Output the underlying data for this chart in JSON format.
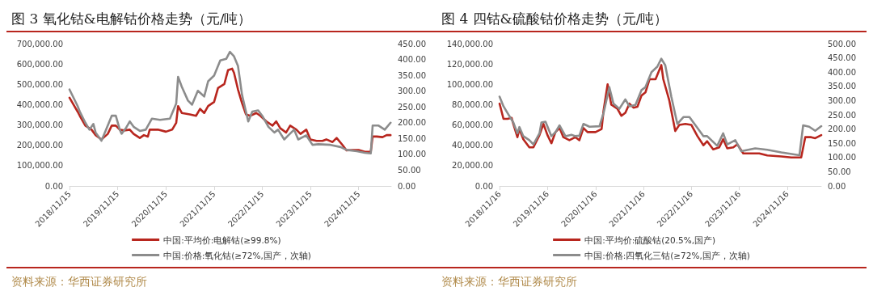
{
  "chart_data": [
    {
      "type": "line",
      "title": "图 3 氧化钴&电解钴价格走势（元/吨）",
      "annotations": [
        "资料来源：华西证券研究所"
      ],
      "legend": "bottom",
      "grid": false,
      "line_style": "solid",
      "marker": "none",
      "xlim": [
        "2018-11-15",
        "2025-07-20"
      ],
      "xticks": [
        {
          "value": "2018-11-15",
          "label": "2018/11/15"
        },
        {
          "value": "2019-11-15",
          "label": "2019/11/15"
        },
        {
          "value": "2020-11-15",
          "label": "2020/11/15"
        },
        {
          "value": "2021-11-15",
          "label": "2021/11/15"
        },
        {
          "value": "2022-11-15",
          "label": "2022/11/15"
        },
        {
          "value": "2023-11-15",
          "label": "2023/11/15"
        },
        {
          "value": "2024-11-15",
          "label": "2024/11/15"
        }
      ],
      "ylim": [
        0,
        700000
      ],
      "yticks": [
        {
          "value": 0,
          "label": "0.00"
        },
        {
          "value": 100000,
          "label": "100,000.00"
        },
        {
          "value": 200000,
          "label": "200,000.00"
        },
        {
          "value": 300000,
          "label": "300,000.00"
        },
        {
          "value": 400000,
          "label": "400,000.00"
        },
        {
          "value": 500000,
          "label": "500,000.00"
        },
        {
          "value": 600000,
          "label": "600,000.00"
        },
        {
          "value": 700000,
          "label": "700,000.00"
        }
      ],
      "y2lim": [
        0,
        450
      ],
      "y2ticks": [
        {
          "value": 0,
          "label": "0.00"
        },
        {
          "value": 50,
          "label": "50.00"
        },
        {
          "value": 100,
          "label": "100.00"
        },
        {
          "value": 150,
          "label": "150.00"
        },
        {
          "value": 200,
          "label": "200.00"
        },
        {
          "value": 250,
          "label": "250.00"
        },
        {
          "value": 300,
          "label": "300.00"
        },
        {
          "value": 350,
          "label": "350.00"
        },
        {
          "value": 400,
          "label": "400.00"
        },
        {
          "value": 450,
          "label": "450.00"
        }
      ],
      "series": [
        {
          "name": "中国:平均价:电解钴(≥99.8%)",
          "color": "#b8261e",
          "x": [
            "2018-11-15",
            "2019-01-15",
            "2019-02-01",
            "2019-03-15",
            "2019-05-01",
            "2019-06-01",
            "2019-07-15",
            "2019-09-01",
            "2019-10-01",
            "2019-11-01",
            "2019-12-01",
            "2020-01-01",
            "2020-02-15",
            "2020-03-15",
            "2020-05-01",
            "2020-06-01",
            "2020-07-01",
            "2020-07-15",
            "2020-09-15",
            "2020-11-15",
            "2021-01-01",
            "2021-02-01",
            "2021-02-15",
            "2021-03-15",
            "2021-05-15",
            "2021-07-01",
            "2021-08-01",
            "2021-09-01",
            "2021-10-01",
            "2021-11-15",
            "2021-12-15",
            "2022-02-01",
            "2022-03-01",
            "2022-04-01",
            "2022-04-15",
            "2022-05-15",
            "2022-06-15",
            "2022-07-15",
            "2022-08-15",
            "2022-10-01",
            "2022-11-01",
            "2022-12-15",
            "2023-02-01",
            "2023-03-01",
            "2023-04-01",
            "2023-05-15",
            "2023-06-15",
            "2023-08-01",
            "2023-09-01",
            "2023-10-15",
            "2023-11-15",
            "2024-01-01",
            "2024-02-15",
            "2024-03-15",
            "2024-05-01",
            "2024-06-01",
            "2024-07-15",
            "2024-08-15",
            "2024-10-01",
            "2024-11-15",
            "2025-01-01",
            "2025-02-15",
            "2025-03-01",
            "2025-04-01",
            "2025-05-15",
            "2025-06-15",
            "2025-07-15"
          ],
          "values": [
            434000,
            366000,
            345000,
            297000,
            277000,
            250000,
            229000,
            256000,
            297000,
            297000,
            277000,
            273000,
            277000,
            256000,
            236000,
            250000,
            243000,
            277000,
            277000,
            267000,
            277000,
            311000,
            393000,
            359000,
            352000,
            345000,
            379000,
            359000,
            393000,
            413000,
            482000,
            502000,
            570000,
            577000,
            557000,
            475000,
            407000,
            352000,
            345000,
            359000,
            345000,
            318000,
            297000,
            318000,
            284000,
            263000,
            297000,
            277000,
            256000,
            277000,
            229000,
            222000,
            222000,
            229000,
            216000,
            236000,
            202000,
            175000,
            177000,
            177000,
            168000,
            168000,
            243000,
            243000,
            240000,
            250000,
            250000
          ]
        },
        {
          "name": "中国:价格:氧化钴(≥72%,国产，次轴)",
          "color": "#8c8c8c",
          "axis": "y2",
          "x": [
            "2018-11-15",
            "2019-01-15",
            "2019-02-01",
            "2019-03-15",
            "2019-04-15",
            "2019-05-15",
            "2019-06-01",
            "2019-07-15",
            "2019-08-15",
            "2019-10-01",
            "2019-11-01",
            "2019-12-01",
            "2019-12-15",
            "2020-01-15",
            "2020-02-15",
            "2020-03-15",
            "2020-05-01",
            "2020-06-15",
            "2020-08-01",
            "2020-10-01",
            "2020-12-15",
            "2021-02-01",
            "2021-02-15",
            "2021-03-15",
            "2021-05-01",
            "2021-06-01",
            "2021-07-15",
            "2021-09-01",
            "2021-10-01",
            "2021-11-15",
            "2022-01-01",
            "2022-02-15",
            "2022-03-15",
            "2022-04-15",
            "2022-05-15",
            "2022-06-15",
            "2022-08-01",
            "2022-09-01",
            "2022-10-15",
            "2022-11-15",
            "2023-01-01",
            "2023-02-15",
            "2023-03-15",
            "2023-05-01",
            "2023-06-01",
            "2023-07-15",
            "2023-08-15",
            "2023-10-15",
            "2023-12-01",
            "2024-01-15",
            "2024-04-15",
            "2024-07-01",
            "2024-08-15",
            "2024-11-01",
            "2025-01-01",
            "2025-02-15",
            "2025-03-01",
            "2025-04-15",
            "2025-06-01",
            "2025-07-15"
          ],
          "values": [
            305,
            253,
            235,
            200,
            178,
            196,
            169,
            143,
            174,
            222,
            222,
            178,
            165,
            182,
            204,
            187,
            174,
            178,
            213,
            209,
            213,
            261,
            345,
            314,
            270,
            257,
            301,
            283,
            331,
            349,
            397,
            402,
            424,
            410,
            380,
            288,
            204,
            235,
            239,
            222,
            187,
            169,
            178,
            147,
            160,
            178,
            147,
            160,
            130,
            132,
            130,
            123,
            114,
            110,
            105,
            103,
            191,
            191,
            178,
            200
          ]
        }
      ]
    },
    {
      "type": "line",
      "title": "图 4 四钴&硫酸钴价格走势（元/吨）",
      "annotations": [
        "资料来源：华西证券研究所"
      ],
      "legend": "bottom",
      "grid": false,
      "line_style": "solid",
      "marker": "none",
      "xlim": [
        "2018-11-16",
        "2025-08-01"
      ],
      "xticks": [
        {
          "value": "2018-11-16",
          "label": "2018/11/16"
        },
        {
          "value": "2019-11-16",
          "label": "2019/11/16"
        },
        {
          "value": "2020-11-16",
          "label": "2020/11/16"
        },
        {
          "value": "2021-11-16",
          "label": "2021/11/16"
        },
        {
          "value": "2022-11-16",
          "label": "2022/11/16"
        },
        {
          "value": "2023-11-16",
          "label": "2023/11/16"
        },
        {
          "value": "2024-11-16",
          "label": "2024/11/16"
        }
      ],
      "ylim": [
        0,
        140000
      ],
      "yticks": [
        {
          "value": 0,
          "label": "0.00"
        },
        {
          "value": 20000,
          "label": "20,000.00"
        },
        {
          "value": 40000,
          "label": "40,000.00"
        },
        {
          "value": 60000,
          "label": "60,000.00"
        },
        {
          "value": 80000,
          "label": "80,000.00"
        },
        {
          "value": 100000,
          "label": "100,000.00"
        },
        {
          "value": 120000,
          "label": "120,000.00"
        },
        {
          "value": 140000,
          "label": "140,000.00"
        }
      ],
      "y2lim": [
        0,
        500
      ],
      "y2ticks": [
        {
          "value": 0,
          "label": "0.00"
        },
        {
          "value": 50,
          "label": "50.00"
        },
        {
          "value": 100,
          "label": "100.00"
        },
        {
          "value": 150,
          "label": "150.00"
        },
        {
          "value": 200,
          "label": "200.00"
        },
        {
          "value": 250,
          "label": "250.00"
        },
        {
          "value": 300,
          "label": "300.00"
        },
        {
          "value": 350,
          "label": "350.00"
        },
        {
          "value": 400,
          "label": "400.00"
        },
        {
          "value": 450,
          "label": "450.00"
        },
        {
          "value": 500,
          "label": "500.00"
        }
      ],
      "series": [
        {
          "name": "中国:平均价:硫酸钴(20.5%,国产)",
          "color": "#b8261e",
          "x": [
            "2018-11-16",
            "2018-12-16",
            "2019-01-16",
            "2019-02-16",
            "2019-03-01",
            "2019-04-01",
            "2019-04-16",
            "2019-05-16",
            "2019-07-01",
            "2019-08-01",
            "2019-09-16",
            "2019-10-16",
            "2019-11-16",
            "2019-12-16",
            "2020-01-16",
            "2020-02-16",
            "2020-03-16",
            "2020-05-01",
            "2020-06-16",
            "2020-07-16",
            "2020-08-16",
            "2020-09-16",
            "2020-11-16",
            "2021-01-01",
            "2021-01-16",
            "2021-02-16",
            "2021-03-16",
            "2021-05-01",
            "2021-06-01",
            "2021-07-01",
            "2021-08-01",
            "2021-09-01",
            "2021-10-01",
            "2021-11-01",
            "2021-12-01",
            "2022-01-01",
            "2022-02-16",
            "2022-04-01",
            "2022-04-16",
            "2022-06-01",
            "2022-07-16",
            "2022-08-16",
            "2022-10-01",
            "2022-11-16",
            "2023-01-01",
            "2023-02-16",
            "2023-03-16",
            "2023-05-01",
            "2023-06-16",
            "2023-07-16",
            "2023-08-16",
            "2023-10-01",
            "2023-11-01",
            "2023-12-16",
            "2024-02-01",
            "2024-04-16",
            "2024-06-16",
            "2024-10-01",
            "2024-12-16",
            "2025-03-01",
            "2025-04-01",
            "2025-05-16",
            "2025-06-16",
            "2025-08-01"
          ],
          "values": [
            81000,
            66000,
            66000,
            67000,
            61000,
            48000,
            56000,
            46000,
            38000,
            38000,
            50000,
            61000,
            50000,
            42000,
            53000,
            57000,
            48000,
            45000,
            48000,
            45000,
            57000,
            53000,
            53000,
            56000,
            74000,
            100000,
            80000,
            76000,
            69000,
            72000,
            81000,
            77000,
            78000,
            89000,
            92000,
            105000,
            105000,
            119000,
            105000,
            84000,
            54000,
            60000,
            61000,
            60000,
            49000,
            40000,
            44000,
            36000,
            38000,
            46000,
            37000,
            38000,
            41000,
            32000,
            32000,
            32000,
            30000,
            29000,
            28000,
            28000,
            48000,
            48000,
            47000,
            50000
          ]
        },
        {
          "name": "中国:价格:四氧化三钴(≥72%,国产，次轴)",
          "color": "#8c8c8c",
          "axis": "y2",
          "x": [
            "2018-11-16",
            "2018-12-16",
            "2019-01-16",
            "2019-03-01",
            "2019-04-01",
            "2019-04-16",
            "2019-05-16",
            "2019-07-01",
            "2019-08-01",
            "2019-09-16",
            "2019-10-01",
            "2019-11-01",
            "2019-12-16",
            "2020-01-16",
            "2020-02-16",
            "2020-04-01",
            "2020-05-16",
            "2020-06-16",
            "2020-07-16",
            "2020-08-16",
            "2020-10-01",
            "2020-12-16",
            "2021-01-16",
            "2021-03-01",
            "2021-04-01",
            "2021-05-16",
            "2021-07-01",
            "2021-08-01",
            "2021-09-16",
            "2021-11-01",
            "2021-12-01",
            "2022-01-16",
            "2022-03-01",
            "2022-04-01",
            "2022-05-01",
            "2022-06-16",
            "2022-08-01",
            "2022-09-16",
            "2022-11-01",
            "2023-01-01",
            "2023-02-16",
            "2023-03-16",
            "2023-06-01",
            "2023-07-16",
            "2023-08-16",
            "2023-10-16",
            "2023-12-01",
            "2024-03-16",
            "2024-06-16",
            "2024-10-01",
            "2025-02-16",
            "2025-03-16",
            "2025-05-01",
            "2025-06-16",
            "2025-08-01"
          ],
          "values": [
            314,
            280,
            256,
            223,
            185,
            207,
            175,
            161,
            146,
            185,
            223,
            226,
            175,
            189,
            213,
            175,
            180,
            175,
            177,
            218,
            208,
            210,
            256,
            347,
            290,
            271,
            304,
            280,
            285,
            337,
            347,
            400,
            419,
            447,
            424,
            314,
            218,
            242,
            242,
            204,
            175,
            175,
            141,
            185,
            146,
            161,
            122,
            132,
            127,
            118,
            108,
            213,
            208,
            194,
            210
          ]
        }
      ]
    }
  ]
}
